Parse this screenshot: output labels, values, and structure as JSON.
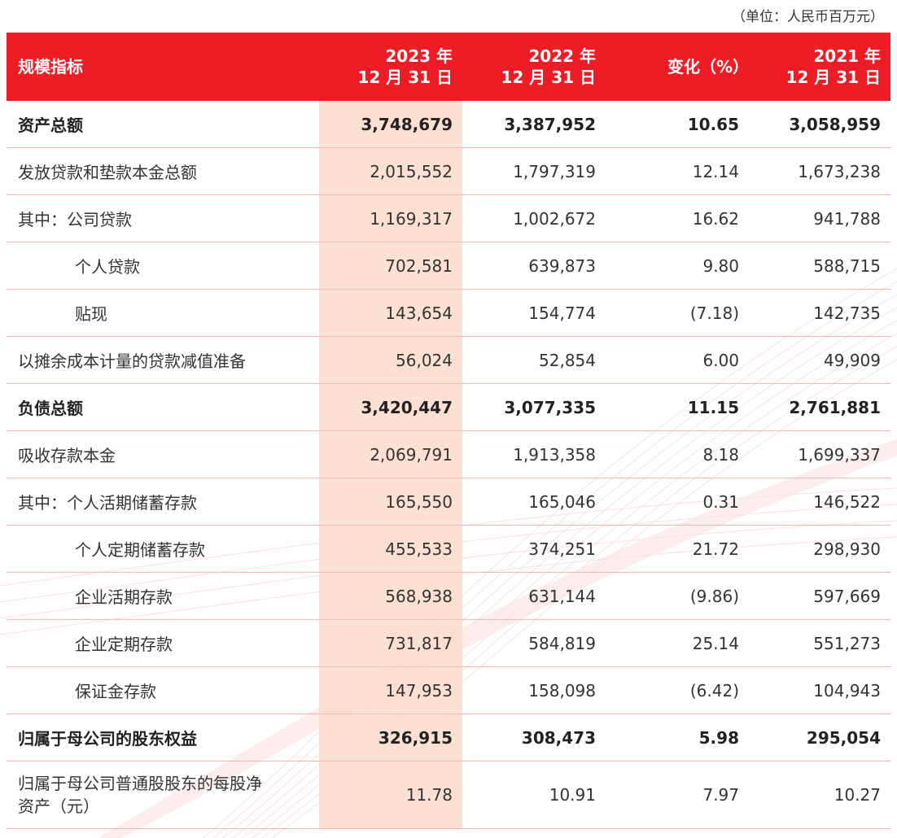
{
  "unit_note": "（单位：人民币百万元）",
  "header": {
    "label": "规模指标",
    "col2023": [
      "2023 年",
      "12 月 31 日"
    ],
    "col2022": [
      "2022 年",
      "12 月 31 日"
    ],
    "change": "变化（%）",
    "col2021": [
      "2021 年",
      "12 月 31 日"
    ]
  },
  "rows": [
    {
      "label": "资产总额",
      "v2023": "3,748,679",
      "v2022": "3,387,952",
      "change": "10.65",
      "v2021": "3,058,959",
      "bold": true,
      "indent": false
    },
    {
      "label": "发放贷款和垫款本金总额",
      "v2023": "2,015,552",
      "v2022": "1,797,319",
      "change": "12.14",
      "v2021": "1,673,238",
      "bold": false,
      "indent": false
    },
    {
      "label": "其中：公司贷款",
      "v2023": "1,169,317",
      "v2022": "1,002,672",
      "change": "16.62",
      "v2021": "941,788",
      "bold": false,
      "indent": false
    },
    {
      "label": "个人贷款",
      "v2023": "702,581",
      "v2022": "639,873",
      "change": "9.80",
      "v2021": "588,715",
      "bold": false,
      "indent": true
    },
    {
      "label": "贴现",
      "v2023": "143,654",
      "v2022": "154,774",
      "change": "(7.18)",
      "v2021": "142,735",
      "bold": false,
      "indent": true
    },
    {
      "label": "以摊余成本计量的贷款减值准备",
      "v2023": "56,024",
      "v2022": "52,854",
      "change": "6.00",
      "v2021": "49,909",
      "bold": false,
      "indent": false
    },
    {
      "label": "负债总额",
      "v2023": "3,420,447",
      "v2022": "3,077,335",
      "change": "11.15",
      "v2021": "2,761,881",
      "bold": true,
      "indent": false
    },
    {
      "label": "吸收存款本金",
      "v2023": "2,069,791",
      "v2022": "1,913,358",
      "change": "8.18",
      "v2021": "1,699,337",
      "bold": false,
      "indent": false
    },
    {
      "label": "其中：个人活期储蓄存款",
      "v2023": "165,550",
      "v2022": "165,046",
      "change": "0.31",
      "v2021": "146,522",
      "bold": false,
      "indent": false
    },
    {
      "label": "个人定期储蓄存款",
      "v2023": "455,533",
      "v2022": "374,251",
      "change": "21.72",
      "v2021": "298,930",
      "bold": false,
      "indent": true
    },
    {
      "label": "企业活期存款",
      "v2023": "568,938",
      "v2022": "631,144",
      "change": "(9.86)",
      "v2021": "597,669",
      "bold": false,
      "indent": true
    },
    {
      "label": "企业定期存款",
      "v2023": "731,817",
      "v2022": "584,819",
      "change": "25.14",
      "v2021": "551,273",
      "bold": false,
      "indent": true
    },
    {
      "label": "保证金存款",
      "v2023": "147,953",
      "v2022": "158,098",
      "change": "(6.42)",
      "v2021": "104,943",
      "bold": false,
      "indent": true
    },
    {
      "label": "归属于母公司的股东权益",
      "v2023": "326,915",
      "v2022": "308,473",
      "change": "5.98",
      "v2021": "295,054",
      "bold": true,
      "indent": false
    },
    {
      "label": [
        "归属于母公司普通股股东的每股净",
        "资产（元）"
      ],
      "v2023": "11.78",
      "v2022": "10.91",
      "change": "7.97",
      "v2021": "10.27",
      "bold": false,
      "indent": false
    }
  ]
}
